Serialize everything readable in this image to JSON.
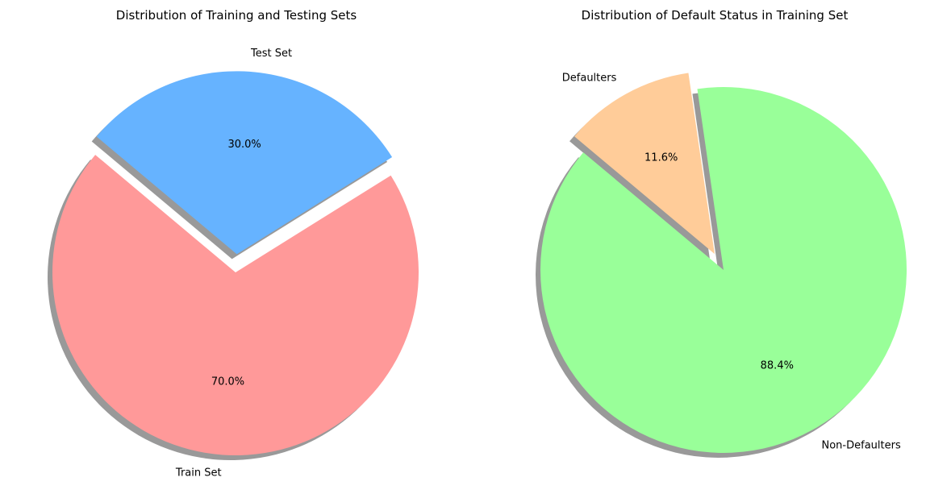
{
  "chart_data": [
    {
      "type": "pie",
      "title": "Distribution of Training and Testing Sets",
      "slices": [
        {
          "label": "Train Set",
          "value": 70.0,
          "pct_label": "70.0%",
          "color": "#ff9999",
          "exploded": false
        },
        {
          "label": "Test Set",
          "value": 30.0,
          "pct_label": "30.0%",
          "color": "#66b3ff",
          "exploded": true
        }
      ],
      "shadow": true,
      "legend": "none"
    },
    {
      "type": "pie",
      "title": "Distribution of Default Status in Training Set",
      "slices": [
        {
          "label": "Non-Defaulters",
          "value": 88.4,
          "pct_label": "88.4%",
          "color": "#99ff99",
          "exploded": false
        },
        {
          "label": "Defaulters",
          "value": 11.6,
          "pct_label": "11.6%",
          "color": "#ffcc99",
          "exploded": true
        }
      ],
      "shadow": true,
      "legend": "none"
    }
  ]
}
